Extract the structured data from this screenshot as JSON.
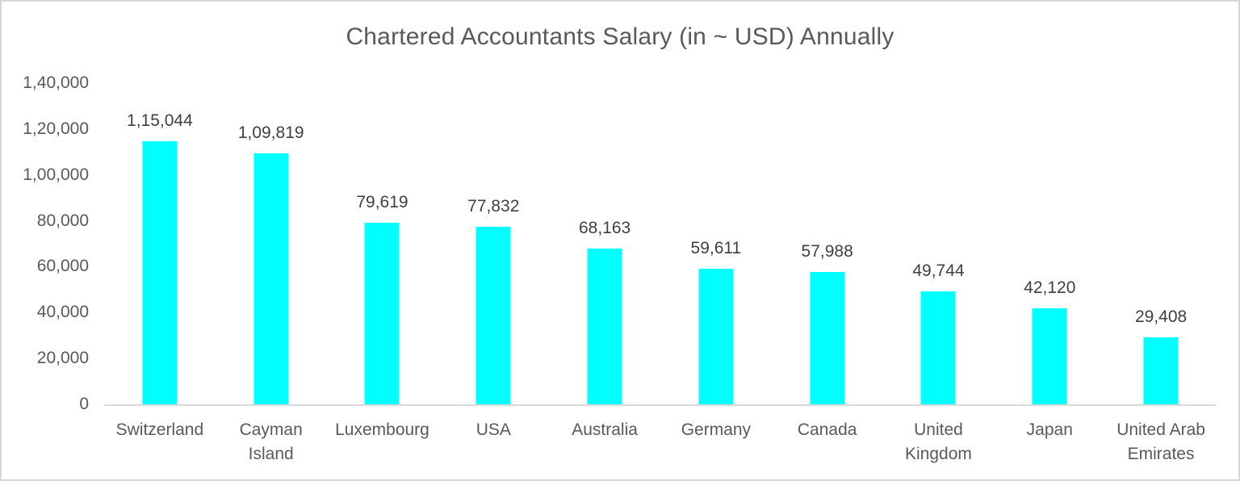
{
  "chart_data": {
    "type": "bar",
    "title": "Chartered Accountants Salary (in ~ USD) Annually",
    "categories": [
      "Switzerland",
      "Cayman Island",
      "Luxembourg",
      "USA",
      "Australia",
      "Germany",
      "Canada",
      "United Kingdom",
      "Japan",
      "United Arab Emirates"
    ],
    "values": [
      115044,
      109819,
      79619,
      77832,
      68163,
      59611,
      57988,
      49744,
      42120,
      29408
    ],
    "value_labels": [
      "1,15,044",
      "1,09,819",
      "79,619",
      "77,832",
      "68,163",
      "59,611",
      "57,988",
      "49,744",
      "42,120",
      "29,408"
    ],
    "xlabel": "",
    "ylabel": "",
    "ylim": [
      0,
      140000
    ],
    "ytick_interval": 20000,
    "ytick_labels": [
      "0",
      "20,000",
      "40,000",
      "60,000",
      "80,000",
      "1,00,000",
      "1,20,000",
      "1,40,000"
    ],
    "grid": "off",
    "legend": "none"
  },
  "colors": {
    "bar": "#00ffff",
    "title_text": "#595959",
    "axis_text": "#595959",
    "data_label_text": "#404040",
    "axis_line": "#d9d9d9",
    "canvas_border": "#d6d6d6",
    "background": "#ffffff"
  }
}
